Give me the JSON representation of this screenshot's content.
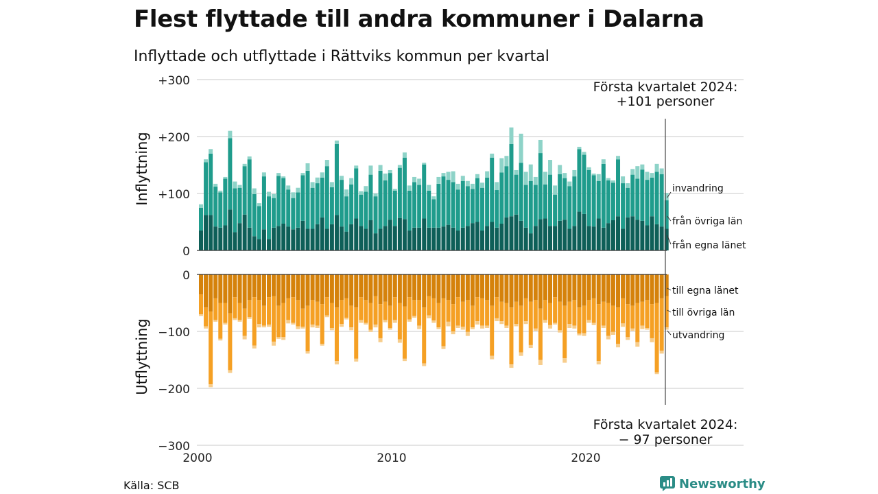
{
  "title": "Flest flyttade till andra kommuner i Dalarna",
  "subtitle": "Inflyttade och utflyttade i Rättviks kommun per kvartal",
  "source": "Källa: SCB",
  "brand": "Newsworthy",
  "colors": {
    "in_own": "#0e5f58",
    "in_other": "#1f9c8c",
    "in_immigration": "#8ed3c8",
    "out_own": "#d5820b",
    "out_other": "#f5a024",
    "out_emigration": "#f7cd8c",
    "grid": "#dcdcdc",
    "brand": "#2b8c86"
  },
  "chart_data": {
    "type": "bar",
    "stacked": true,
    "x_start": "2000 Q1",
    "x_ticks": [
      "2000",
      "2010",
      "2020"
    ],
    "y_ticks_top": [
      "+300",
      "+200",
      "+100",
      "0"
    ],
    "y_ticks_bottom": [
      "0",
      "−100",
      "−200",
      "−300"
    ],
    "ylabel_top": "Inflyttning",
    "ylabel_bottom": "Utflyttning",
    "ylim": [
      -300,
      300
    ],
    "grid": true,
    "annotation_top": [
      "Första kvartalet 2024:",
      "+101 personer"
    ],
    "annotation_bottom": [
      "Första kvartalet 2024:",
      "− 97 personer"
    ],
    "series_inflow": [
      {
        "name": "från egna länet",
        "values": [
          35,
          62,
          62,
          42,
          40,
          44,
          72,
          32,
          48,
          63,
          40,
          25,
          20,
          37,
          20,
          40,
          43,
          47,
          42,
          37,
          40,
          52,
          38,
          38,
          46,
          58,
          38,
          46,
          62,
          42,
          33,
          46,
          56,
          43,
          38,
          53,
          30,
          38,
          43,
          54,
          43,
          57,
          55,
          35,
          40,
          40,
          56,
          40,
          40,
          40,
          42,
          45,
          40,
          35,
          40,
          43,
          48,
          50,
          35,
          43,
          50,
          40,
          47,
          58,
          60,
          63,
          52,
          40,
          30,
          43,
          55,
          56,
          43,
          43,
          52,
          54,
          38,
          43,
          68,
          64,
          43,
          42,
          56,
          40,
          48,
          53,
          60,
          38,
          58,
          60,
          54,
          52,
          44,
          60,
          46,
          42,
          38
        ]
      },
      {
        "name": "från övriga län",
        "values": [
          40,
          93,
          108,
          70,
          62,
          82,
          125,
          77,
          62,
          85,
          120,
          74,
          58,
          93,
          75,
          52,
          88,
          80,
          65,
          55,
          62,
          80,
          102,
          72,
          72,
          70,
          110,
          65,
          125,
          82,
          62,
          70,
          88,
          55,
          65,
          80,
          65,
          102,
          80,
          82,
          62,
          88,
          108,
          70,
          80,
          75,
          95,
          65,
          50,
          77,
          88,
          79,
          80,
          72,
          82,
          70,
          60,
          77,
          75,
          85,
          113,
          66,
          90,
          90,
          127,
          70,
          102,
          75,
          92,
          72,
          116,
          60,
          90,
          55,
          82,
          73,
          75,
          87,
          110,
          104,
          98,
          90,
          66,
          112,
          75,
          66,
          100,
          80,
          52,
          73,
          72,
          90,
          80,
          68,
          92,
          92,
          50
        ]
      },
      {
        "name": "invandring",
        "values": [
          6,
          5,
          8,
          5,
          3,
          3,
          13,
          12,
          5,
          4,
          5,
          10,
          5,
          7,
          8,
          7,
          5,
          3,
          7,
          10,
          8,
          4,
          13,
          10,
          10,
          9,
          11,
          9,
          6,
          7,
          12,
          11,
          5,
          6,
          10,
          16,
          5,
          10,
          12,
          5,
          3,
          5,
          9,
          9,
          9,
          11,
          3,
          10,
          5,
          12,
          6,
          14,
          19,
          10,
          9,
          9,
          9,
          7,
          9,
          11,
          7,
          14,
          25,
          18,
          29,
          8,
          51,
          23,
          29,
          14,
          23,
          22,
          26,
          16,
          16,
          9,
          8,
          11,
          4,
          5,
          5,
          3,
          12,
          8,
          4,
          4,
          6,
          12,
          8,
          10,
          22,
          9,
          14,
          8,
          14,
          10,
          13
        ]
      }
    ],
    "series_outflow": [
      {
        "name": "till egna länet",
        "values": [
          35,
          58,
          65,
          42,
          50,
          50,
          68,
          40,
          50,
          60,
          45,
          40,
          45,
          55,
          40,
          38,
          55,
          50,
          42,
          40,
          45,
          60,
          55,
          45,
          48,
          52,
          40,
          50,
          58,
          45,
          42,
          55,
          58,
          40,
          45,
          50,
          38,
          52,
          48,
          55,
          40,
          50,
          56,
          40,
          45,
          45,
          58,
          38,
          42,
          50,
          42,
          45,
          52,
          40,
          48,
          45,
          55,
          40,
          42,
          45,
          55,
          40,
          48,
          50,
          58,
          48,
          55,
          42,
          48,
          45,
          60,
          45,
          50,
          40,
          48,
          55,
          48,
          45,
          58,
          55,
          45,
          42,
          52,
          48,
          50,
          55,
          58,
          42,
          52,
          55,
          50,
          48,
          45,
          52,
          50,
          42,
          38
        ]
      },
      {
        "name": "till övriga län",
        "values": [
          35,
          33,
          128,
          38,
          63,
          35,
          100,
          37,
          30,
          48,
          30,
          85,
          42,
          35,
          48,
          80,
          55,
          60,
          38,
          45,
          46,
          32,
          80,
          43,
          42,
          70,
          32,
          44,
          94,
          42,
          34,
          38,
          90,
          40,
          40,
          47,
          50,
          60,
          32,
          39,
          40,
          64,
          92,
          39,
          28,
          45,
          98,
          34,
          39,
          43,
          84,
          38,
          48,
          50,
          44,
          56,
          38,
          42,
          48,
          45,
          88,
          37,
          34,
          40,
          100,
          39,
          82,
          40,
          76,
          50,
          90,
          35,
          39,
          45,
          50,
          92,
          39,
          45,
          46,
          48,
          35,
          43,
          100,
          42,
          58,
          46,
          64,
          44,
          58,
          40,
          69,
          42,
          49,
          60,
          122,
          92,
          55
        ]
      },
      {
        "name": "utvandring",
        "values": [
          3,
          4,
          5,
          3,
          3,
          3,
          5,
          3,
          3,
          6,
          3,
          5,
          6,
          3,
          4,
          7,
          3,
          5,
          6,
          3,
          5,
          3,
          4,
          5,
          4,
          3,
          3,
          4,
          6,
          5,
          3,
          5,
          5,
          5,
          3,
          4,
          5,
          7,
          4,
          3,
          5,
          6,
          4,
          4,
          3,
          6,
          5,
          5,
          4,
          3,
          5,
          8,
          5,
          4,
          5,
          7,
          3,
          6,
          5,
          4,
          6,
          5,
          5,
          4,
          6,
          4,
          6,
          5,
          5,
          4,
          9,
          5,
          6,
          3,
          4,
          8,
          7,
          5,
          3,
          5,
          5,
          4,
          6,
          4,
          6,
          5,
          6,
          6,
          5,
          4,
          8,
          6,
          3,
          7,
          3,
          5,
          4
        ]
      }
    ]
  }
}
